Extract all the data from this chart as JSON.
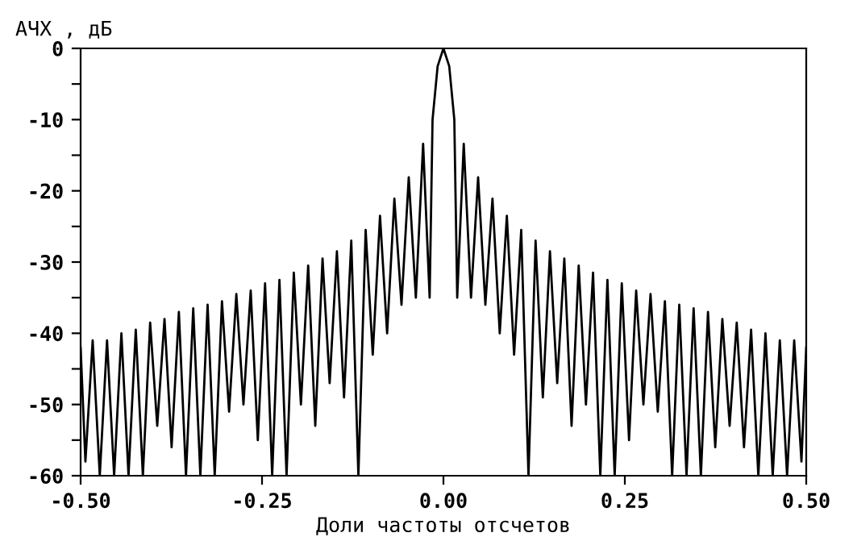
{
  "chart_data": {
    "type": "line",
    "xlabel": "Доли частоты отсчетов",
    "ylabel": "АЧХ , дБ",
    "xlim": [
      -0.5,
      0.5
    ],
    "ylim": [
      -60,
      0
    ],
    "xticks": [
      {
        "value": -0.5,
        "label": "-0.50"
      },
      {
        "value": -0.25,
        "label": "-0.25"
      },
      {
        "value": 0,
        "label": "0.00"
      },
      {
        "value": 0.25,
        "label": "0.25"
      },
      {
        "value": 0.5,
        "label": "0.50"
      }
    ],
    "yticks": [
      -60,
      {
        "value": -55,
        "label": null
      },
      -50,
      {
        "value": -45,
        "label": null
      },
      -40,
      {
        "value": -35,
        "label": null
      },
      -30,
      {
        "value": -25,
        "label": null
      },
      -20,
      {
        "value": -15,
        "label": null
      },
      -10,
      {
        "value": -5,
        "label": null
      },
      0
    ],
    "grid": false,
    "marker": "none",
    "line_style": "solid",
    "series": [
      {
        "color": "#000000",
        "x": [
          -0.5,
          -0.4934,
          -0.4834,
          -0.4736,
          -0.4636,
          -0.4538,
          -0.4438,
          -0.434,
          -0.424,
          -0.4142,
          -0.4042,
          -0.3944,
          -0.3844,
          -0.3746,
          -0.3646,
          -0.3548,
          -0.3448,
          -0.335,
          -0.325,
          -0.3152,
          -0.3052,
          -0.2954,
          -0.2854,
          -0.2756,
          -0.2656,
          -0.2558,
          -0.2458,
          -0.236,
          -0.226,
          -0.2162,
          -0.2062,
          -0.1964,
          -0.1864,
          -0.1766,
          -0.1666,
          -0.1568,
          -0.1468,
          -0.137,
          -0.127,
          -0.1172,
          -0.1072,
          -0.0974,
          -0.0874,
          -0.0776,
          -0.0676,
          -0.0578,
          -0.0478,
          -0.038,
          -0.028,
          -0.019,
          -0.015,
          -0.008,
          0,
          0.008,
          0.015,
          0.019,
          0.028,
          0.038,
          0.0478,
          0.0578,
          0.0676,
          0.0776,
          0.0874,
          0.0974,
          0.1072,
          0.1172,
          0.127,
          0.137,
          0.1468,
          0.1568,
          0.1666,
          0.1766,
          0.1864,
          0.1964,
          0.2062,
          0.2162,
          0.226,
          0.236,
          0.2458,
          0.2558,
          0.2656,
          0.2756,
          0.2854,
          0.2954,
          0.3052,
          0.3152,
          0.325,
          0.335,
          0.3448,
          0.3548,
          0.3646,
          0.3746,
          0.3844,
          0.3944,
          0.4042,
          0.4142,
          0.424,
          0.434,
          0.4438,
          0.4538,
          0.4636,
          0.4736,
          0.4834,
          0.4934,
          0.5
        ],
        "values": [
          -42,
          -58,
          -41,
          -60,
          -41,
          -60,
          -40,
          -60,
          -39.5,
          -60,
          -38.5,
          -53,
          -38,
          -56,
          -37,
          -60,
          -36.5,
          -60,
          -36,
          -60,
          -35.5,
          -51,
          -34.5,
          -50,
          -34,
          -55,
          -33,
          -60,
          -32.5,
          -60,
          -31.5,
          -50,
          -30.5,
          -53,
          -29.5,
          -47,
          -28.5,
          -49,
          -27,
          -60,
          -25.5,
          -43,
          -23.5,
          -40,
          -21.1,
          -36,
          -18.1,
          -35,
          -13.4,
          -35,
          -10,
          -2.5,
          0,
          -2.5,
          -10,
          -35,
          -13.4,
          -35,
          -18.1,
          -36,
          -21.1,
          -40,
          -23.5,
          -43,
          -25.5,
          -60,
          -27,
          -49,
          -28.5,
          -47,
          -29.5,
          -53,
          -30.5,
          -50,
          -31.5,
          -60,
          -32.5,
          -60,
          -33,
          -55,
          -34,
          -50,
          -34.5,
          -51,
          -35.5,
          -60,
          -36,
          -60,
          -36.5,
          -60,
          -37,
          -56,
          -38,
          -53,
          -38.5,
          -56,
          -39.5,
          -60,
          -40,
          -60,
          -41,
          -60,
          -41,
          -58,
          -42
        ]
      }
    ]
  }
}
